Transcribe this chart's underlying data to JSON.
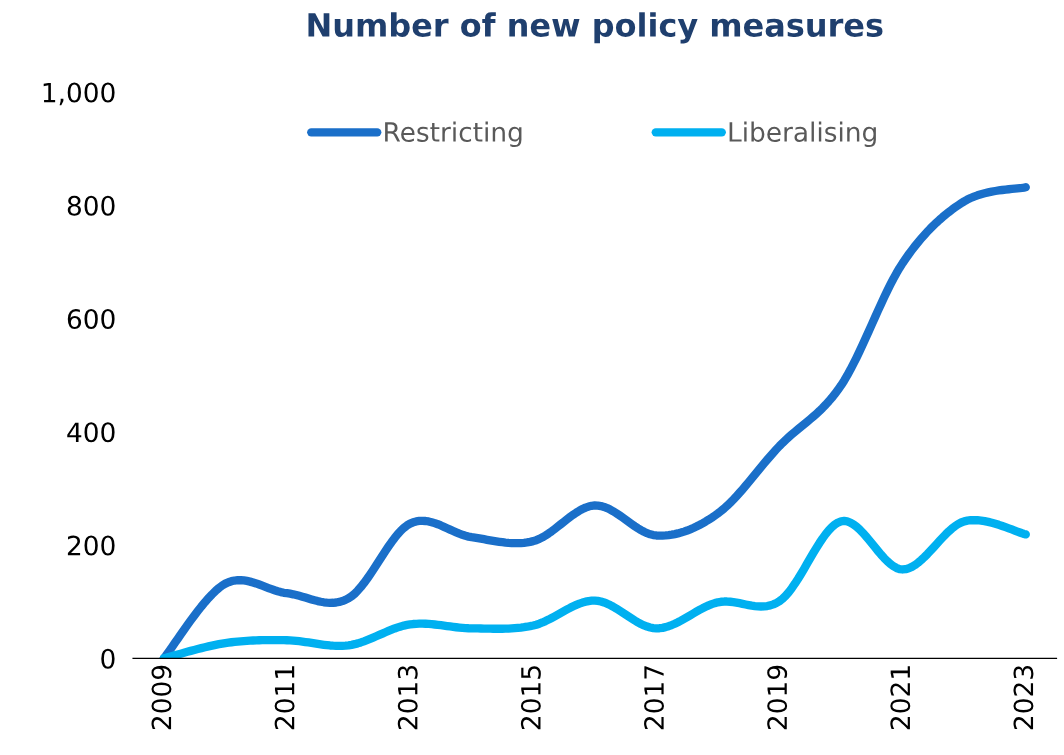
{
  "chart_data": {
    "type": "line",
    "title": "Number of new policy measures",
    "x": [
      2009,
      2010,
      2011,
      2012,
      2013,
      2014,
      2015,
      2016,
      2017,
      2018,
      2019,
      2020,
      2021,
      2022,
      2023
    ],
    "series": [
      {
        "name": "Restricting",
        "color": "#1a6fc9",
        "values": [
          0,
          132,
          115,
          106,
          238,
          214,
          207,
          270,
          217,
          256,
          375,
          482,
          698,
          807,
          832
        ]
      },
      {
        "name": "Liberalising",
        "color": "#00b0f0",
        "values": [
          0,
          27,
          32,
          23,
          60,
          53,
          58,
          102,
          53,
          99,
          101,
          242,
          157,
          242,
          219
        ]
      }
    ],
    "xlim": [
      2008.5,
      2023.5
    ],
    "xticks": [
      2009,
      2011,
      2013,
      2015,
      2017,
      2019,
      2021,
      2023
    ],
    "ylim": [
      0,
      1000
    ],
    "yticks": [
      0,
      200,
      400,
      600,
      800,
      {
        "value": 1000,
        "label": "1,000"
      }
    ],
    "grid": false,
    "legend": "top",
    "marker": "none",
    "line_style": "solid"
  }
}
